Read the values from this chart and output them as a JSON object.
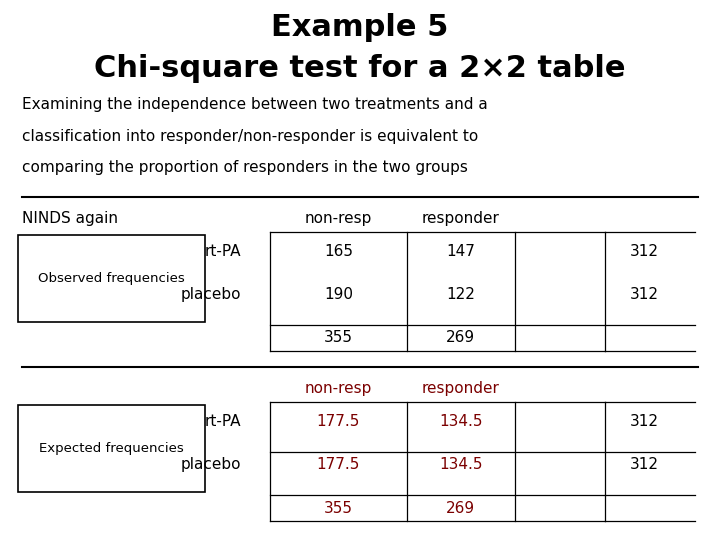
{
  "title_line1": "Example 5",
  "title_line2": "Chi-square test for a 2×2 table",
  "subtitle_lines": [
    "Examining the independence between two treatments and a",
    "classification into responder/non-responder is equivalent to",
    "comparing the proportion of responders in the two groups"
  ],
  "background_color": "#ffffff",
  "title_fontsize": 22,
  "subtitle_fontsize": 11,
  "body_fontsize": 11,
  "obs_label": "NINDS again",
  "obs_box_label": "Observed frequencies",
  "exp_box_label": "Expected frequencies",
  "col_headers_obs": [
    "non-resp",
    "responder"
  ],
  "col_headers_exp": [
    "non-resp",
    "responder"
  ],
  "row_labels": [
    "rt-PA",
    "placebo"
  ],
  "obs_data": [
    [
      165,
      147,
      312
    ],
    [
      190,
      122,
      312
    ],
    [
      355,
      269,
      ""
    ]
  ],
  "exp_data": [
    [
      177.5,
      134.5,
      312
    ],
    [
      177.5,
      134.5,
      312
    ],
    [
      355,
      269,
      ""
    ]
  ],
  "obs_color": "#000000",
  "exp_color": "#7b0000",
  "header_color_obs": "#000000",
  "header_color_exp": "#7b0000"
}
